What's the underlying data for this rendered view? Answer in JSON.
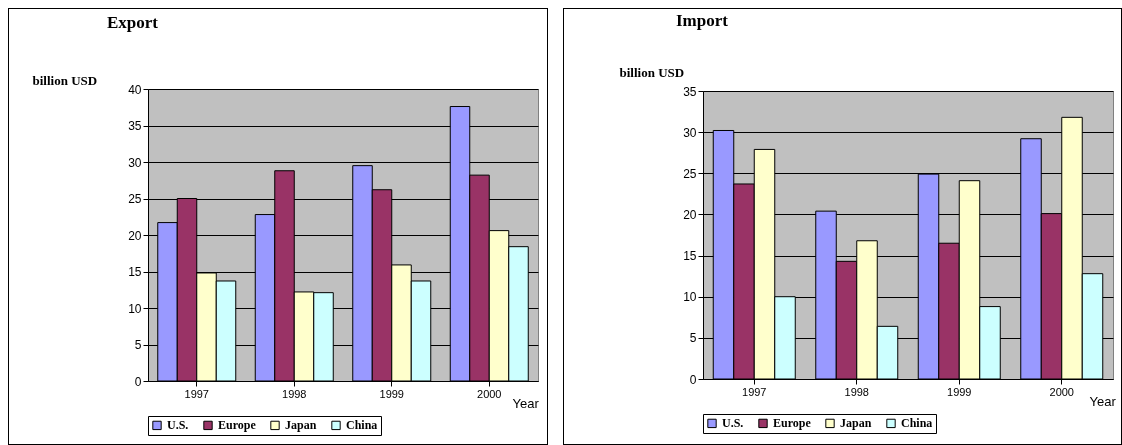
{
  "chart_data": [
    {
      "type": "bar",
      "title": "Export",
      "xlabel": "Year",
      "ylabel": "billion USD",
      "categories": [
        "1997",
        "1998",
        "1999",
        "2000"
      ],
      "series": [
        {
          "name": "U.S.",
          "color": "#9999ff",
          "values": [
            21.7,
            22.8,
            29.5,
            37.6
          ]
        },
        {
          "name": "Europe",
          "color": "#993366",
          "values": [
            25.0,
            28.8,
            26.2,
            28.2
          ]
        },
        {
          "name": "Japan",
          "color": "#ffffcc",
          "values": [
            14.8,
            12.2,
            15.9,
            20.6
          ]
        },
        {
          "name": "China",
          "color": "#ccffff",
          "values": [
            13.7,
            12.1,
            13.7,
            18.4
          ]
        }
      ],
      "ylim": [
        0,
        40
      ],
      "yticks": [
        0,
        5,
        10,
        15,
        20,
        25,
        30,
        35,
        40
      ],
      "grid": "y",
      "legend": "bottom"
    },
    {
      "type": "bar",
      "title": "Import",
      "xlabel": "Year",
      "ylabel": "billion USD",
      "categories": [
        "1997",
        "1998",
        "1999",
        "2000"
      ],
      "series": [
        {
          "name": "U.S.",
          "color": "#9999ff",
          "values": [
            30.2,
            20.4,
            24.9,
            29.2
          ]
        },
        {
          "name": "Europe",
          "color": "#993366",
          "values": [
            23.7,
            14.3,
            16.5,
            20.1
          ]
        },
        {
          "name": "Japan",
          "color": "#ffffcc",
          "values": [
            27.9,
            16.8,
            24.1,
            31.8
          ]
        },
        {
          "name": "China",
          "color": "#ccffff",
          "values": [
            10.0,
            6.4,
            8.8,
            12.8
          ]
        }
      ],
      "ylim": [
        0,
        35
      ],
      "yticks": [
        0,
        5,
        10,
        15,
        20,
        25,
        30,
        35
      ],
      "grid": "y",
      "legend": "bottom"
    }
  ]
}
